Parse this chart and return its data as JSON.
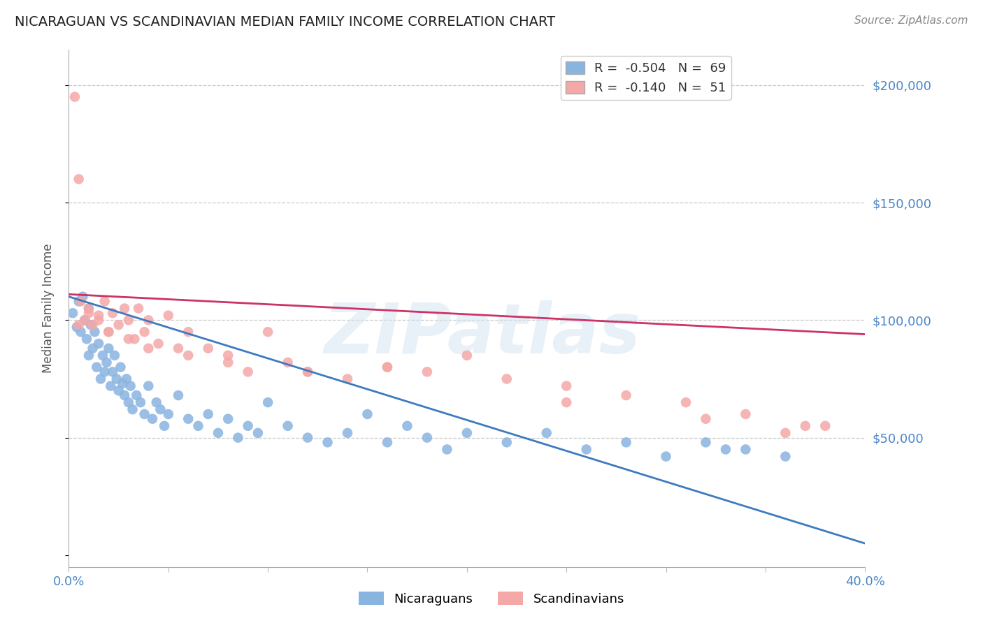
{
  "title": "NICARAGUAN VS SCANDINAVIAN MEDIAN FAMILY INCOME CORRELATION CHART",
  "source": "Source: ZipAtlas.com",
  "ylabel": "Median Family Income",
  "xlim": [
    0.0,
    0.4
  ],
  "ylim": [
    -5000,
    215000
  ],
  "yticks": [
    0,
    50000,
    100000,
    150000,
    200000
  ],
  "xticks": [
    0.0,
    0.05,
    0.1,
    0.15,
    0.2,
    0.25,
    0.3,
    0.35,
    0.4
  ],
  "ytick_labels_right": [
    "",
    "$50,000",
    "$100,000",
    "$150,000",
    "$200,000"
  ],
  "blue_R": "-0.504",
  "blue_N": "69",
  "pink_R": "-0.140",
  "pink_N": "51",
  "blue_color": "#8ab4e0",
  "pink_color": "#f4a8a8",
  "blue_line_color": "#3d7abf",
  "pink_line_color": "#cc3366",
  "legend_label_blue": "Nicaraguans",
  "legend_label_pink": "Scandinavians",
  "watermark": "ZIPatlas",
  "background_color": "#ffffff",
  "grid_color": "#c8c8c8",
  "title_color": "#222222",
  "axis_label_color": "#555555",
  "tick_color": "#4a86c8",
  "blue_line_x0": 0.0,
  "blue_line_y0": 110000,
  "blue_line_x1": 0.4,
  "blue_line_y1": 5000,
  "pink_line_x0": 0.0,
  "pink_line_y0": 111000,
  "pink_line_x1": 0.4,
  "pink_line_y1": 94000,
  "blue_scatter_x": [
    0.002,
    0.004,
    0.005,
    0.006,
    0.007,
    0.008,
    0.009,
    0.01,
    0.01,
    0.011,
    0.012,
    0.013,
    0.014,
    0.015,
    0.016,
    0.017,
    0.018,
    0.019,
    0.02,
    0.021,
    0.022,
    0.023,
    0.024,
    0.025,
    0.026,
    0.027,
    0.028,
    0.029,
    0.03,
    0.031,
    0.032,
    0.034,
    0.036,
    0.038,
    0.04,
    0.042,
    0.044,
    0.046,
    0.048,
    0.05,
    0.055,
    0.06,
    0.065,
    0.07,
    0.075,
    0.08,
    0.085,
    0.09,
    0.095,
    0.1,
    0.11,
    0.12,
    0.13,
    0.14,
    0.15,
    0.16,
    0.17,
    0.18,
    0.19,
    0.2,
    0.22,
    0.24,
    0.26,
    0.28,
    0.3,
    0.32,
    0.34,
    0.36,
    0.33
  ],
  "blue_scatter_y": [
    103000,
    97000,
    108000,
    95000,
    110000,
    100000,
    92000,
    105000,
    85000,
    98000,
    88000,
    95000,
    80000,
    90000,
    75000,
    85000,
    78000,
    82000,
    88000,
    72000,
    78000,
    85000,
    75000,
    70000,
    80000,
    73000,
    68000,
    75000,
    65000,
    72000,
    62000,
    68000,
    65000,
    60000,
    72000,
    58000,
    65000,
    62000,
    55000,
    60000,
    68000,
    58000,
    55000,
    60000,
    52000,
    58000,
    50000,
    55000,
    52000,
    65000,
    55000,
    50000,
    48000,
    52000,
    60000,
    48000,
    55000,
    50000,
    45000,
    52000,
    48000,
    52000,
    45000,
    48000,
    42000,
    48000,
    45000,
    42000,
    45000
  ],
  "pink_scatter_x": [
    0.003,
    0.005,
    0.006,
    0.008,
    0.01,
    0.012,
    0.015,
    0.018,
    0.02,
    0.022,
    0.025,
    0.028,
    0.03,
    0.033,
    0.035,
    0.038,
    0.04,
    0.045,
    0.05,
    0.055,
    0.06,
    0.07,
    0.08,
    0.09,
    0.1,
    0.11,
    0.12,
    0.14,
    0.16,
    0.18,
    0.2,
    0.22,
    0.25,
    0.28,
    0.31,
    0.34,
    0.37,
    0.005,
    0.01,
    0.015,
    0.02,
    0.03,
    0.04,
    0.06,
    0.08,
    0.12,
    0.16,
    0.25,
    0.32,
    0.38,
    0.36
  ],
  "pink_scatter_y": [
    195000,
    160000,
    108000,
    100000,
    105000,
    98000,
    102000,
    108000,
    95000,
    103000,
    98000,
    105000,
    100000,
    92000,
    105000,
    95000,
    100000,
    90000,
    102000,
    88000,
    95000,
    88000,
    85000,
    78000,
    95000,
    82000,
    78000,
    75000,
    80000,
    78000,
    85000,
    75000,
    72000,
    68000,
    65000,
    60000,
    55000,
    98000,
    103000,
    100000,
    95000,
    92000,
    88000,
    85000,
    82000,
    78000,
    80000,
    65000,
    58000,
    55000,
    52000
  ]
}
